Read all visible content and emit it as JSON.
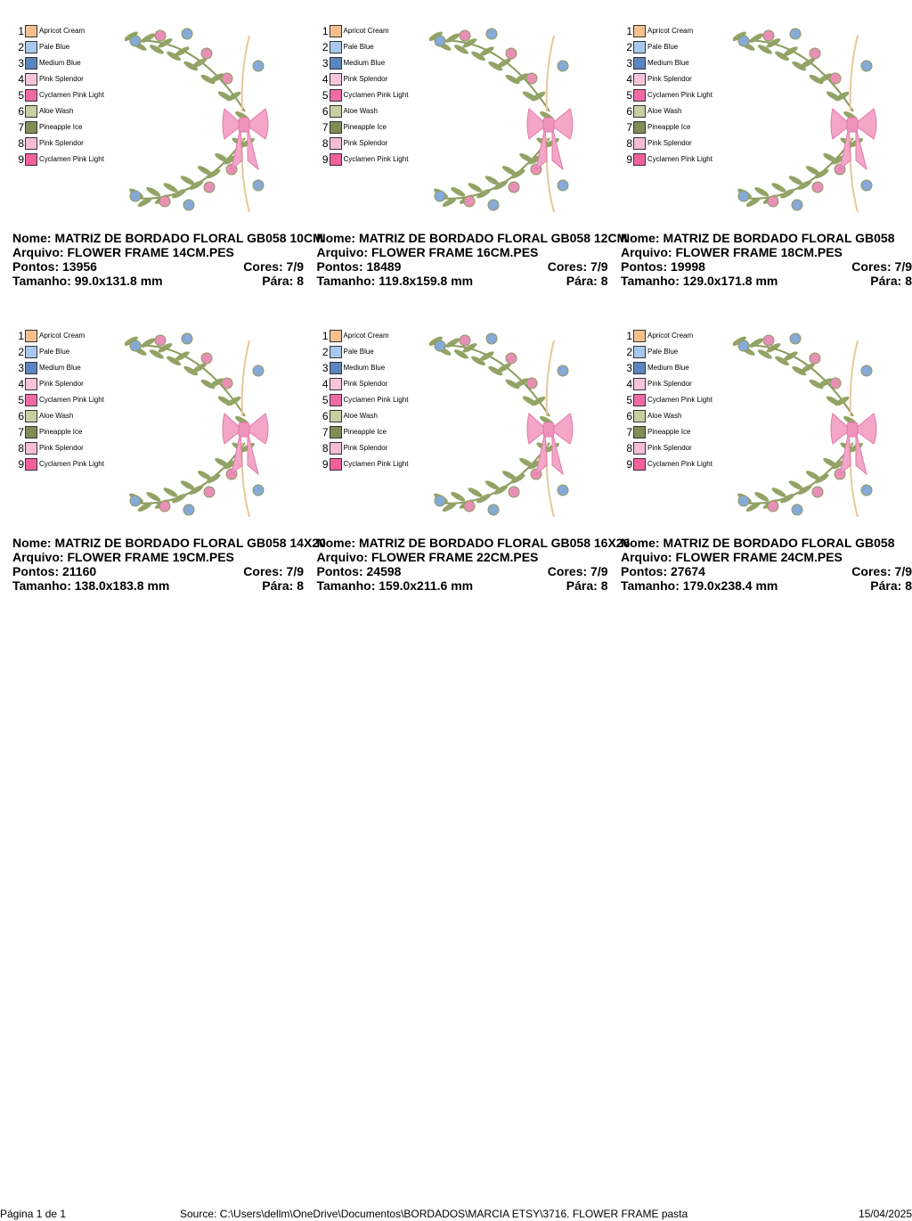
{
  "threads": [
    {
      "number": 1,
      "name": "Apricot Cream",
      "color": "#f6c08e"
    },
    {
      "number": 2,
      "name": "Pale Blue",
      "color": "#a9c8ee"
    },
    {
      "number": 3,
      "name": "Medium Blue",
      "color": "#5b85c0"
    },
    {
      "number": 4,
      "name": "Pink Splendor",
      "color": "#f7c4dc"
    },
    {
      "number": 5,
      "name": "Cyclamen Pink Light",
      "color": "#f06aa6"
    },
    {
      "number": 6,
      "name": "Aloe Wash",
      "color": "#c8cfa3"
    },
    {
      "number": 7,
      "name": "Pineapple Ice",
      "color": "#7f8e55"
    },
    {
      "number": 8,
      "name": "Pink Splendor",
      "color": "#f7bcd8"
    },
    {
      "number": 9,
      "name": "Cyclamen Pink Light",
      "color": "#f2609e"
    }
  ],
  "designs": [
    {
      "name": "Nome: MATRIZ DE BORDADO FLORAL GB058 10CM",
      "file": "Arquivo: FLOWER FRAME 14CM.PES",
      "stitches": "Pontos: 13956",
      "colors": "Cores: 7/9",
      "size": "Tamanho: 99.0x131.8 mm",
      "stops": "Pára: 8"
    },
    {
      "name": "Nome: MATRIZ DE BORDADO FLORAL GB058 12CM",
      "file": "Arquivo: FLOWER FRAME 16CM.PES",
      "stitches": "Pontos: 18489",
      "colors": "Cores: 7/9",
      "size": "Tamanho: 119.8x159.8 mm",
      "stops": "Pára: 8"
    },
    {
      "name": "Nome: MATRIZ DE BORDADO FLORAL GB058",
      "file": "Arquivo: FLOWER FRAME 18CM.PES",
      "stitches": "Pontos: 19998",
      "colors": "Cores: 7/9",
      "size": "Tamanho: 129.0x171.8 mm",
      "stops": "Pára: 8"
    },
    {
      "name": "Nome: MATRIZ DE BORDADO FLORAL GB058 14X20",
      "file": "Arquivo: FLOWER FRAME 19CM.PES",
      "stitches": "Pontos: 21160",
      "colors": "Cores: 7/9",
      "size": "Tamanho: 138.0x183.8 mm",
      "stops": "Pára: 8"
    },
    {
      "name": "Nome: MATRIZ DE BORDADO FLORAL GB058 16X26",
      "file": "Arquivo: FLOWER FRAME 22CM.PES",
      "stitches": "Pontos: 24598",
      "colors": "Cores: 7/9",
      "size": "Tamanho: 159.0x211.6 mm",
      "stops": "Pára: 8"
    },
    {
      "name": "Nome: MATRIZ DE BORDADO FLORAL GB058",
      "file": "Arquivo: FLOWER FRAME 24CM.PES",
      "stitches": "Pontos: 27674",
      "colors": "Cores: 7/9",
      "size": "Tamanho: 179.0x238.4 mm",
      "stops": "Pára: 8"
    }
  ],
  "footer": {
    "page": "Página 1 de 1",
    "source": "Source: C:\\Users\\dellm\\OneDrive\\Documentos\\BORDADOS\\MARCIA ETSY\\3716. FLOWER FRAME pasta",
    "date": "15/04/2025"
  }
}
